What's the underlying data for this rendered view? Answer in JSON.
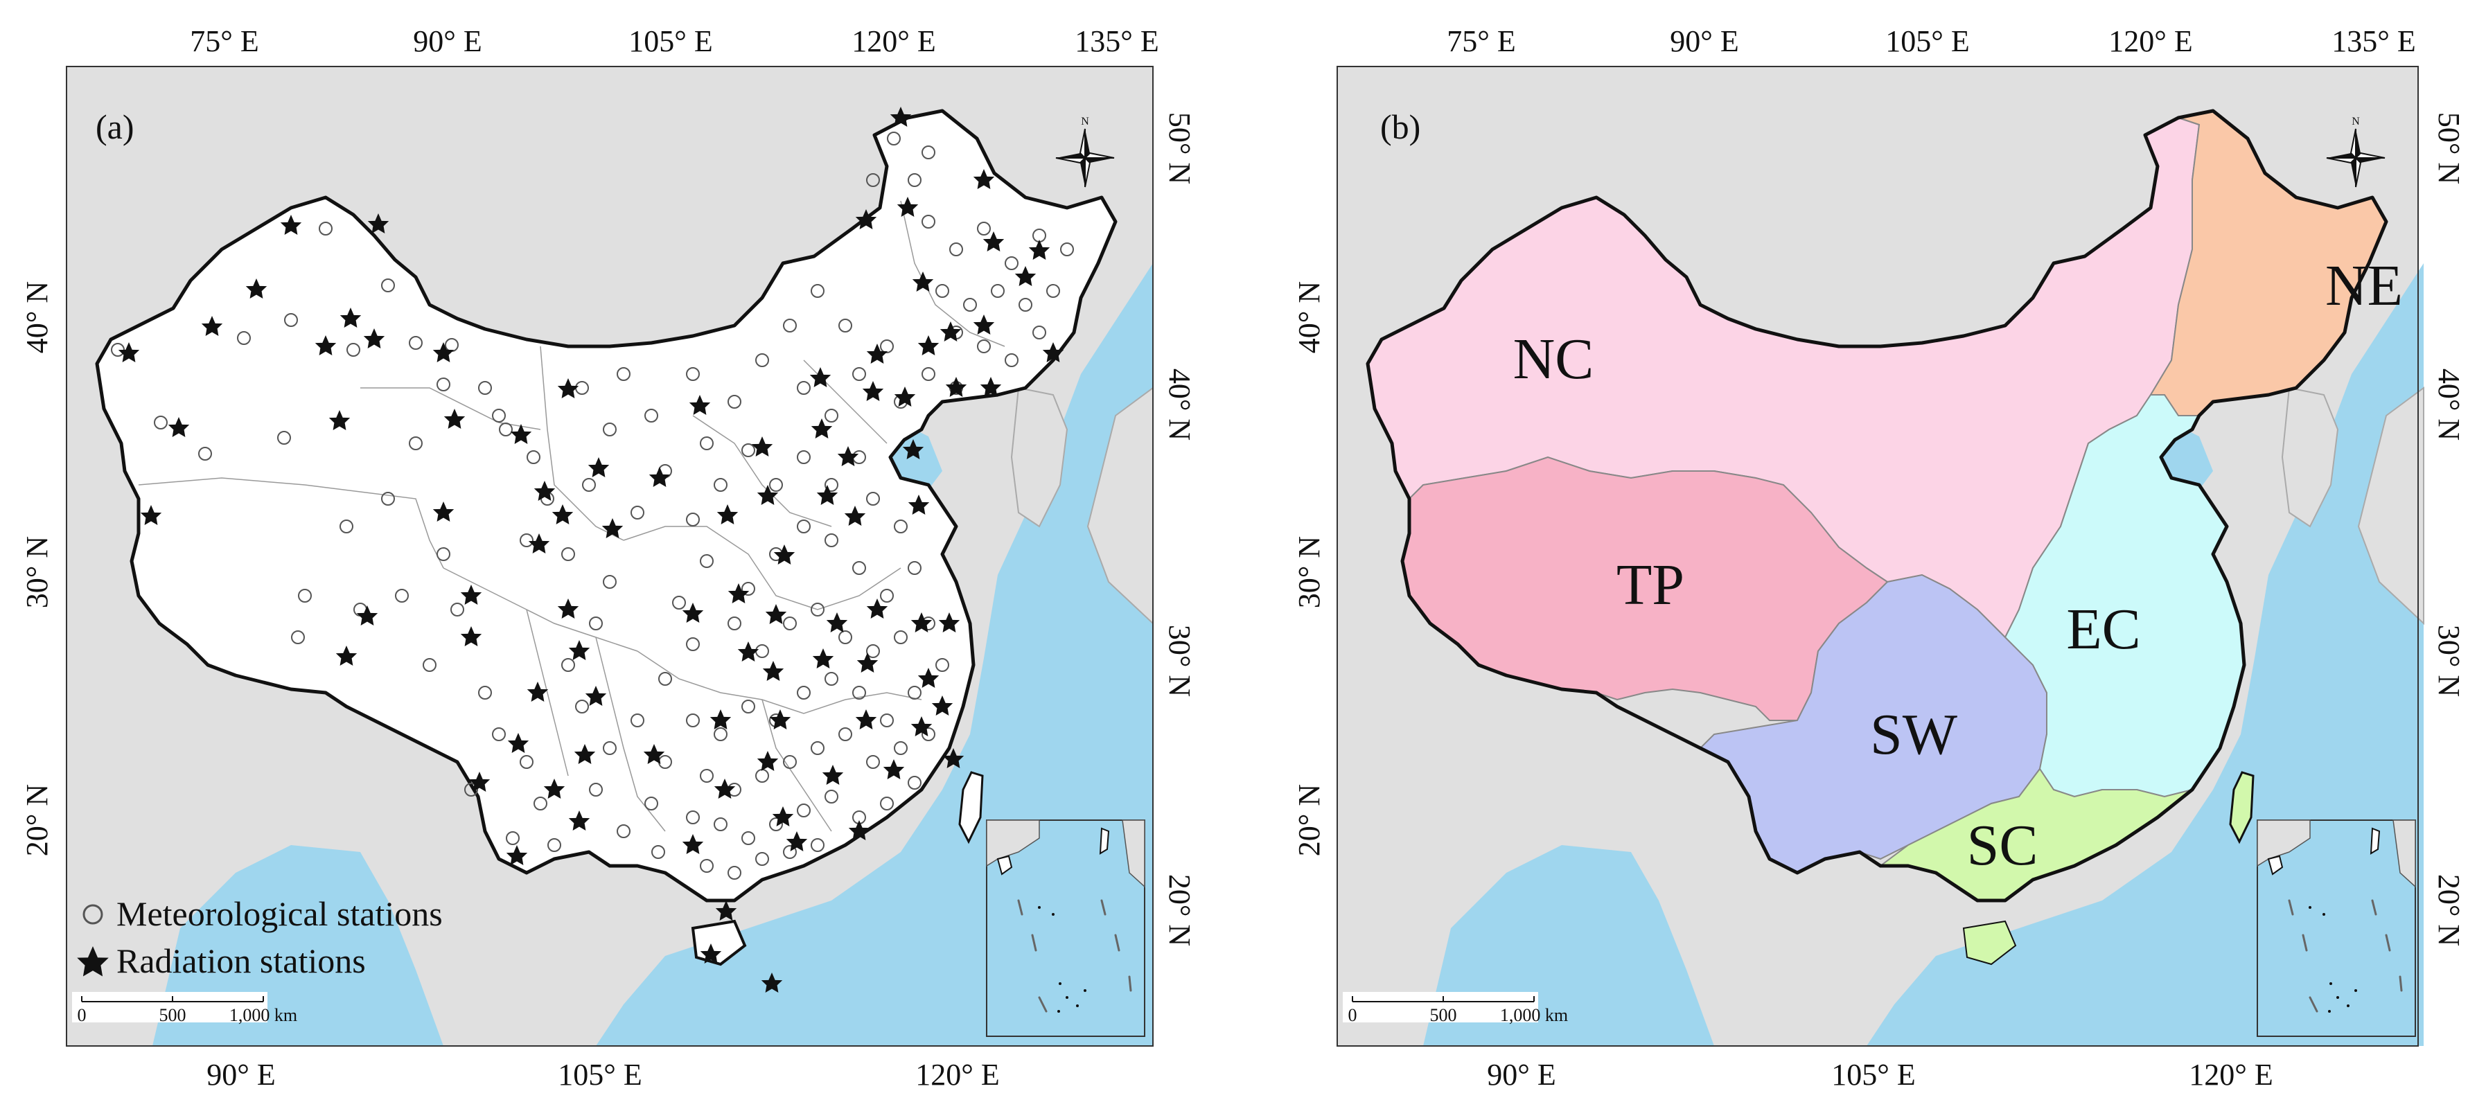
{
  "panels": [
    {
      "id": "a",
      "label": "(a)",
      "top_ticks": [
        "75° E",
        "90° E",
        "105° E",
        "120° E",
        "135° E"
      ],
      "bottom_ticks": [
        "90° E",
        "105° E",
        "120° E"
      ],
      "left_ticks": [
        "40° N",
        "30° N",
        "20° N"
      ],
      "right_ticks": [
        "50° N",
        "40° N",
        "30° N",
        "20° N"
      ],
      "legend": [
        {
          "symbol": "open-circle",
          "text": "Meteorological stations"
        },
        {
          "symbol": "black-star",
          "text": "Radiation stations"
        }
      ],
      "scale_bar": {
        "labels": [
          "0",
          "500",
          "1,000 km"
        ]
      },
      "colors": {
        "china": "#ffffff",
        "other_land": "#e0e0e0",
        "ocean": "#9fd6ee",
        "star": "#111111",
        "circle": "#555555"
      }
    },
    {
      "id": "b",
      "label": "(b)",
      "top_ticks": [
        "75° E",
        "90° E",
        "105° E",
        "120° E",
        "135° E"
      ],
      "bottom_ticks": [
        "90° E",
        "105° E",
        "120° E"
      ],
      "left_ticks": [
        "40° N",
        "30° N",
        "20° N"
      ],
      "right_ticks": [
        "50° N",
        "40° N",
        "30° N",
        "20° N"
      ],
      "regions": [
        {
          "code": "NC",
          "color": "#fcd4e6"
        },
        {
          "code": "NE",
          "color": "#fac8a8"
        },
        {
          "code": "TP",
          "color": "#f7b2c6"
        },
        {
          "code": "EC",
          "color": "#ccfafa"
        },
        {
          "code": "SW",
          "color": "#bcc4f4"
        },
        {
          "code": "SC",
          "color": "#d2f8ac"
        }
      ],
      "scale_bar": {
        "labels": [
          "0",
          "500",
          "1,000 km"
        ]
      },
      "colors": {
        "other_land": "#e0e0e0",
        "ocean": "#9fd6ee"
      }
    }
  ]
}
